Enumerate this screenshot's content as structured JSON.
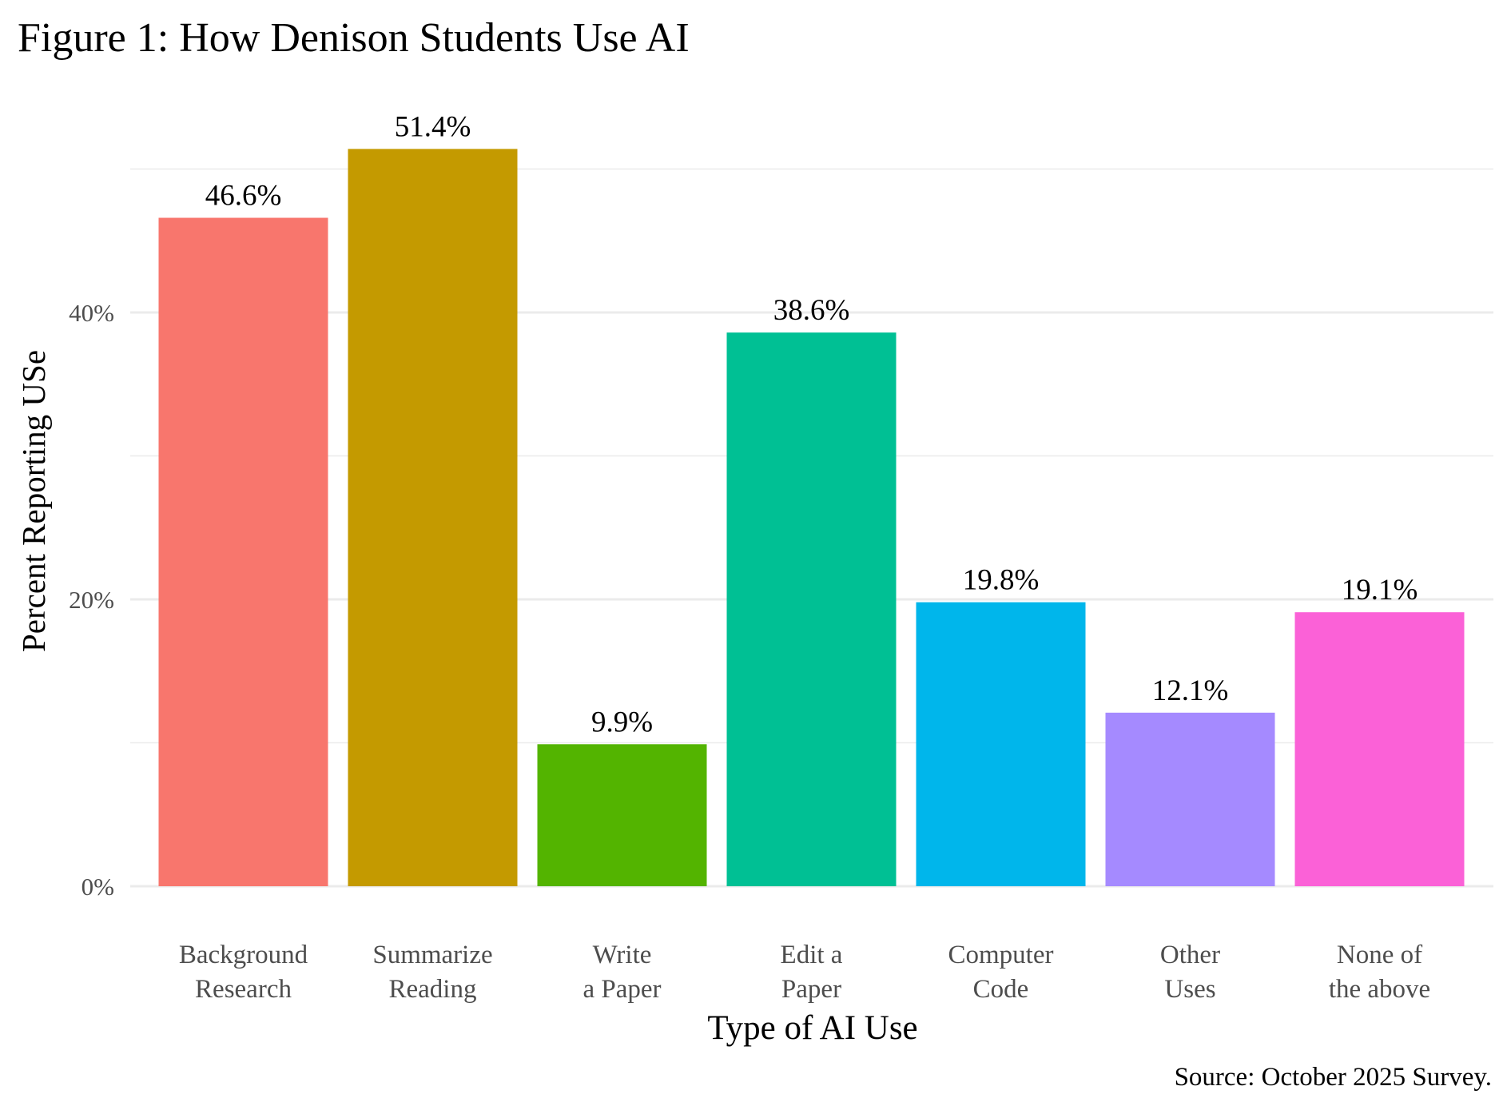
{
  "chart_data": {
    "type": "bar",
    "title": "Figure 1: How Denison Students Use AI",
    "xlabel": "Type of AI Use",
    "ylabel": "Percent Reporting USe",
    "caption": "Source: October 2025 Survey.",
    "categories": [
      [
        "Background",
        "Research"
      ],
      [
        "Summarize",
        "Reading"
      ],
      [
        "Write",
        "a Paper"
      ],
      [
        "Edit a",
        "Paper"
      ],
      [
        "Computer",
        "Code"
      ],
      [
        "Other",
        "Uses"
      ],
      [
        "None of",
        "the above"
      ]
    ],
    "values": [
      46.6,
      51.4,
      9.9,
      38.6,
      19.8,
      12.1,
      19.1
    ],
    "value_labels": [
      "46.6%",
      "51.4%",
      "9.9%",
      "38.6%",
      "19.8%",
      "12.1%",
      "19.1%"
    ],
    "colors": [
      "#F8766D",
      "#C49A00",
      "#53B400",
      "#00C094",
      "#00B6EB",
      "#A58AFF",
      "#FB61D7"
    ],
    "yticks": [
      0,
      20,
      40
    ],
    "ytick_labels": [
      "0%",
      "20%",
      "40%"
    ],
    "minor_gridlines": [
      10,
      30,
      50
    ],
    "ylim": [
      0,
      53
    ],
    "grid": true,
    "legend": "none"
  }
}
